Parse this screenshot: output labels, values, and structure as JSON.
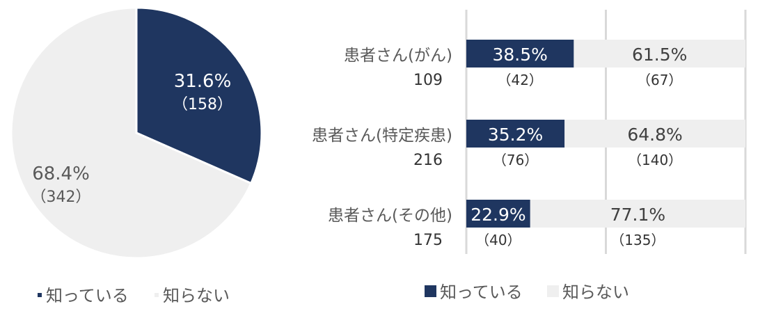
{
  "chart_data": [
    {
      "type": "pie",
      "labels": [
        "知っている",
        "知らない"
      ],
      "values": [
        31.6,
        68.4
      ],
      "counts": [
        "（158）",
        "（342）"
      ],
      "value_labels": [
        "31.6%",
        "68.4%"
      ],
      "colors": [
        "#1f3660",
        "#efefef"
      ],
      "legend": {
        "position": "bottom",
        "entries": [
          "知っている",
          "知らない"
        ]
      }
    },
    {
      "type": "bar",
      "orientation": "horizontal",
      "stacked": true,
      "categories": [
        "患者さん(がん)",
        "患者さん(特定疾患)",
        "患者さん(その他)"
      ],
      "category_totals": [
        "109",
        "216",
        "175"
      ],
      "series": [
        {
          "name": "知っている",
          "values": [
            38.5,
            35.2,
            22.9
          ],
          "value_labels": [
            "38.5%",
            "35.2%",
            "22.9%"
          ],
          "counts": [
            "（42）",
            "（76）",
            "（40）"
          ],
          "color": "#1f3660"
        },
        {
          "name": "知らない",
          "values": [
            61.5,
            64.8,
            77.1
          ],
          "value_labels": [
            "61.5%",
            "64.8%",
            "77.1%"
          ],
          "counts": [
            "（67）",
            "（140）",
            "（135）"
          ],
          "color": "#efefef"
        }
      ],
      "xlim": [
        0,
        100
      ],
      "grid": true,
      "legend": {
        "position": "bottom",
        "entries": [
          "知っている",
          "知らない"
        ]
      }
    }
  ]
}
